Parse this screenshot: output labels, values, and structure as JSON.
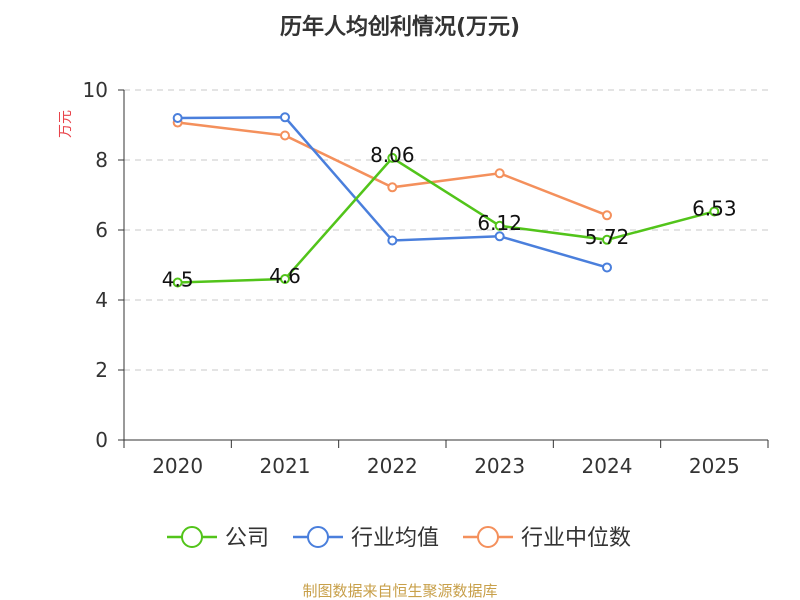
{
  "chart_data": {
    "type": "line",
    "title": "历年人均创利情况(万元)",
    "ylabel": "万元",
    "xlabel": "",
    "categories": [
      "2020",
      "2021",
      "2022",
      "2023",
      "2024",
      "2025"
    ],
    "ylim": [
      0,
      10
    ],
    "yticks": [
      0,
      2,
      4,
      6,
      8,
      10
    ],
    "grid": "horizontal-dashed",
    "legend_position": "bottom",
    "series": [
      {
        "name": "公司",
        "color": "#52c41a",
        "values": [
          4.5,
          4.6,
          8.06,
          6.12,
          5.72,
          6.53
        ],
        "data_labels": [
          "4.5",
          "4.6",
          "8.06",
          "6.12",
          "5.72",
          "6.53"
        ]
      },
      {
        "name": "行业均值",
        "color": "#4a7fdc",
        "values": [
          9.2,
          9.22,
          5.7,
          5.82,
          4.93,
          null
        ]
      },
      {
        "name": "行业中位数",
        "color": "#f4905c",
        "values": [
          9.07,
          8.7,
          7.22,
          7.62,
          6.42,
          null
        ]
      }
    ]
  },
  "source_note": "制图数据来自恒生聚源数据库"
}
